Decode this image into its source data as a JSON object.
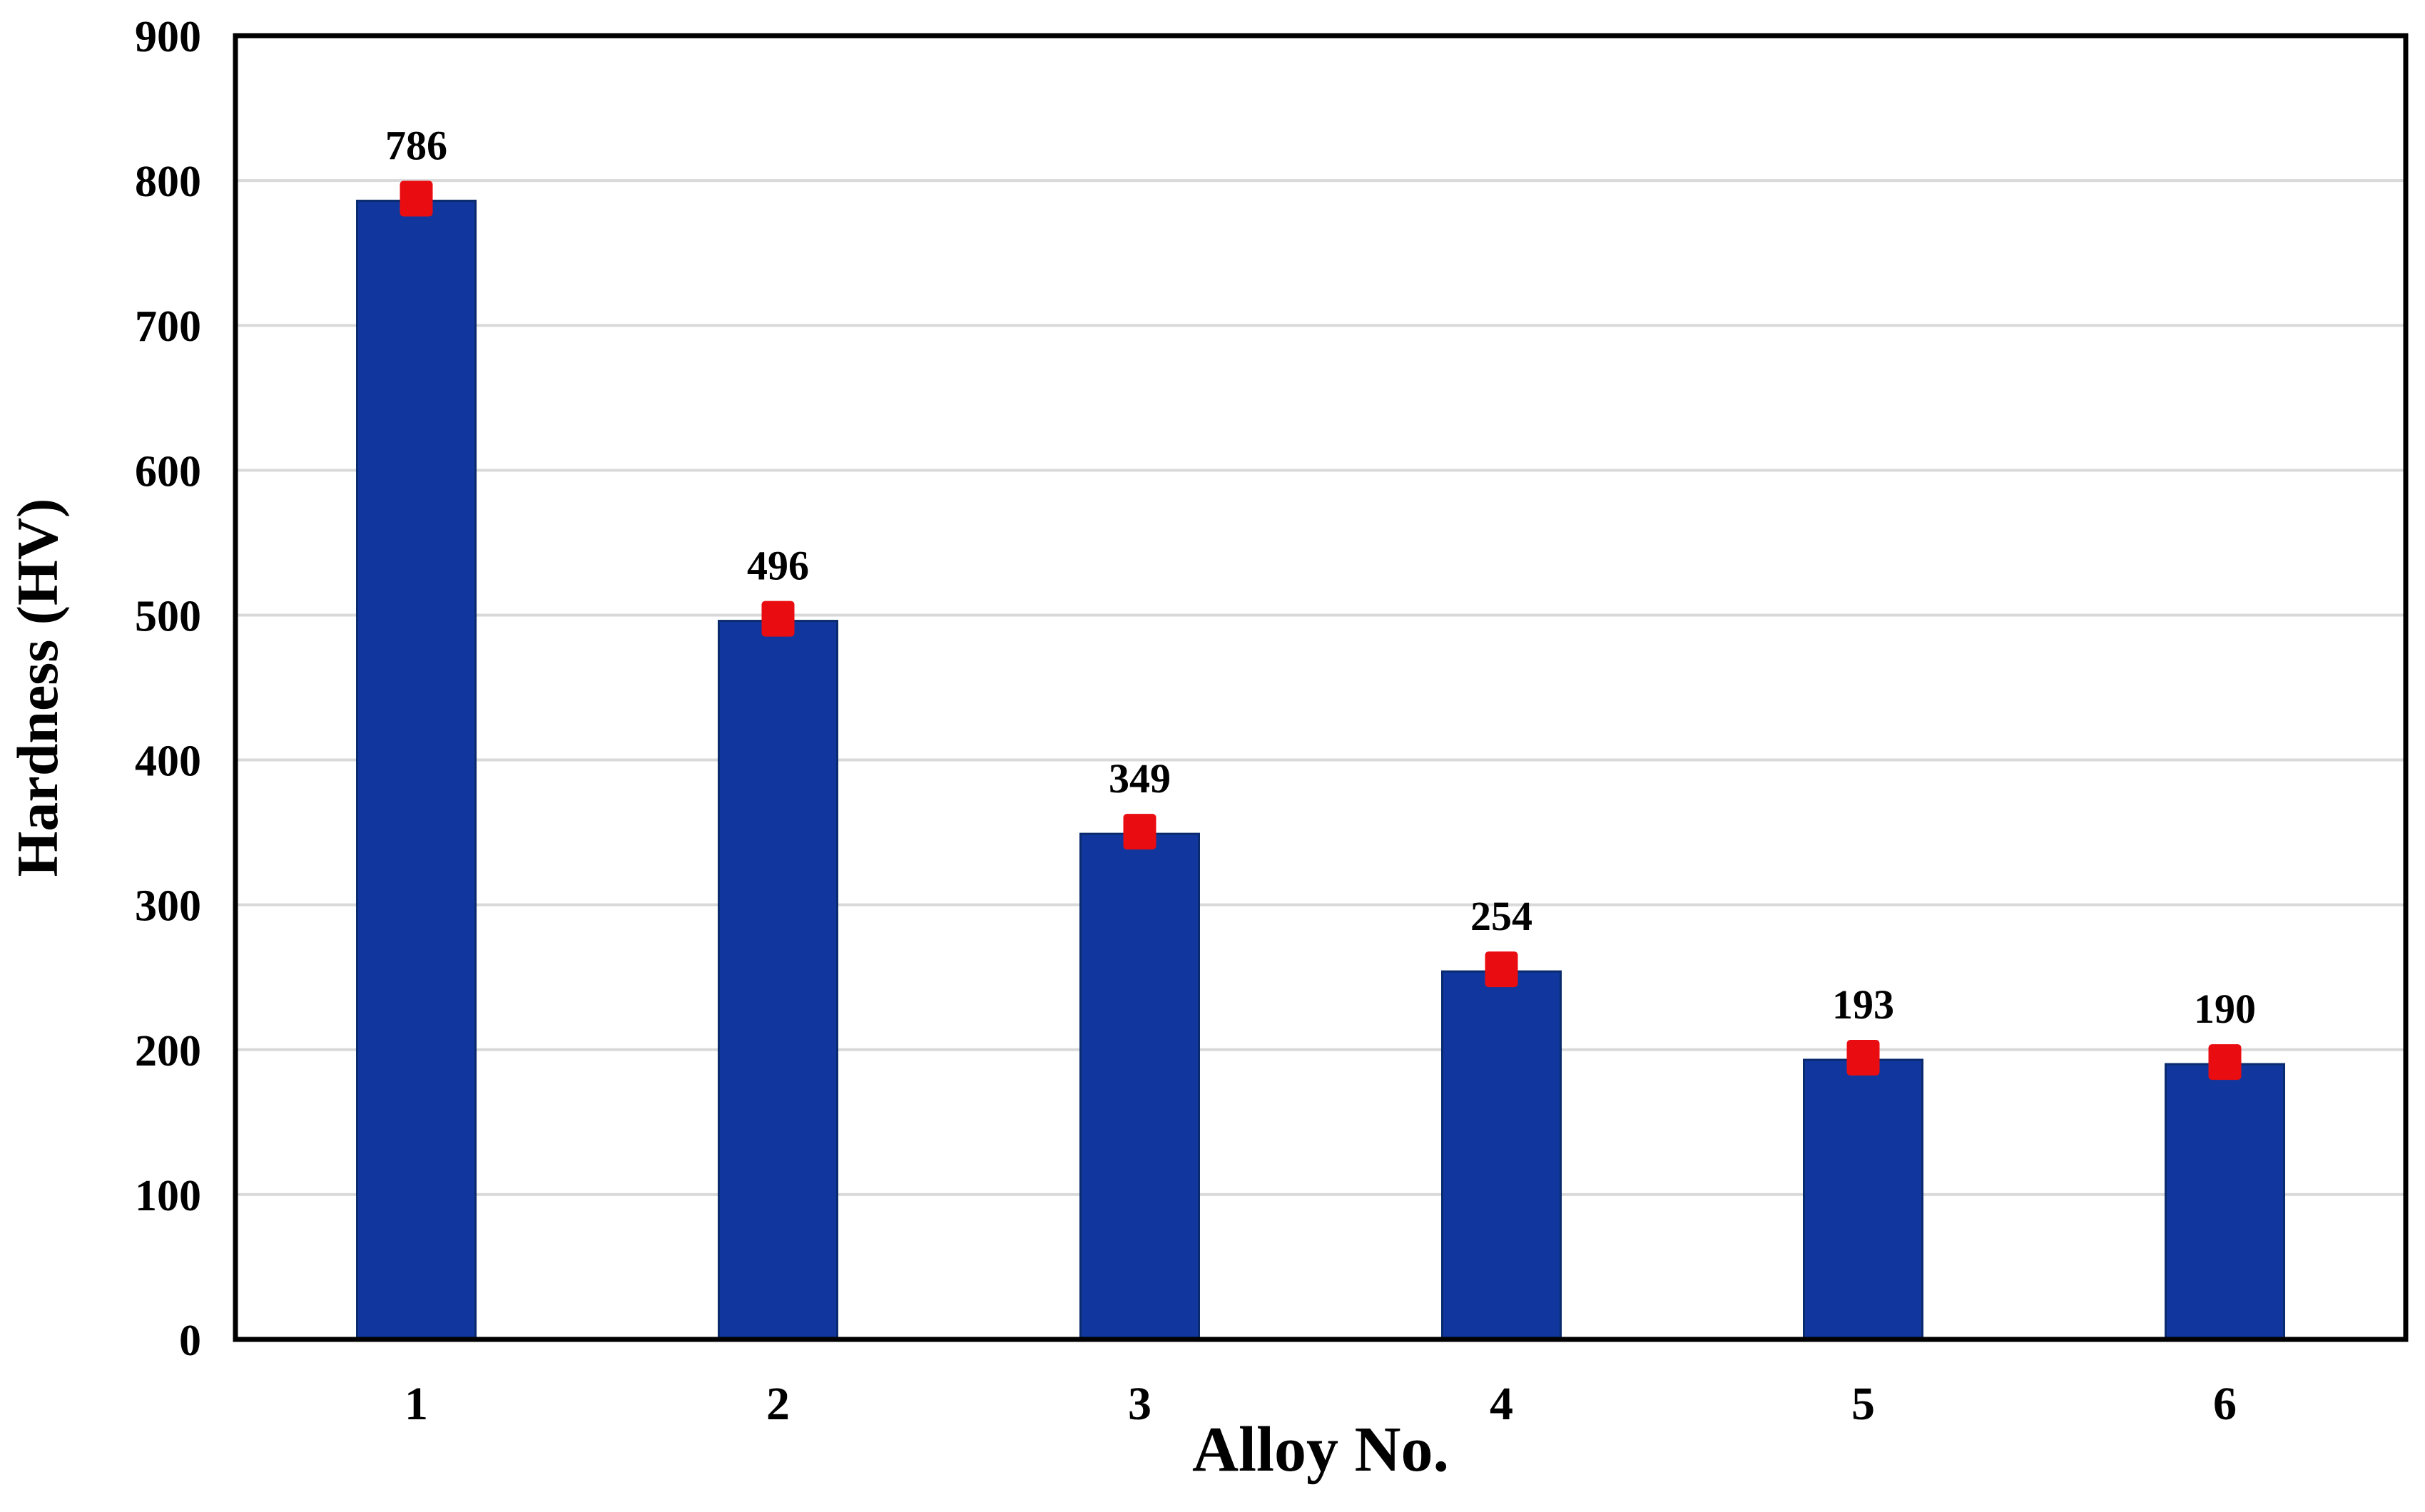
{
  "figure": {
    "background_color": "#ffffff",
    "frame_color": "#000000",
    "gridline_color": "#d9d9d9",
    "text_color": "#000000"
  },
  "chart_data": {
    "type": "bar",
    "title": "",
    "xlabel": "Alloy No.",
    "ylabel": "Hardness (HV)",
    "categories": [
      "1",
      "2",
      "3",
      "4",
      "5",
      "6"
    ],
    "values": [
      786,
      496,
      349,
      254,
      193,
      190
    ],
    "data_labels": [
      "786",
      "496",
      "349",
      "254",
      "193",
      "190"
    ],
    "series": [
      {
        "name": "Hardness",
        "values": [
          786,
          496,
          349,
          254,
          193,
          190
        ]
      }
    ],
    "ylim": [
      0,
      900
    ],
    "ytick_step": 100,
    "ytick_labels": [
      "0",
      "100",
      "200",
      "300",
      "400",
      "500",
      "600",
      "700",
      "800",
      "900"
    ],
    "grid": "horizontal",
    "legend_position": "none",
    "bar_color": "#11379e",
    "bar_edge_color": "#0a2b6e",
    "error_bars": true,
    "error_marker_color": "#e90d12"
  }
}
